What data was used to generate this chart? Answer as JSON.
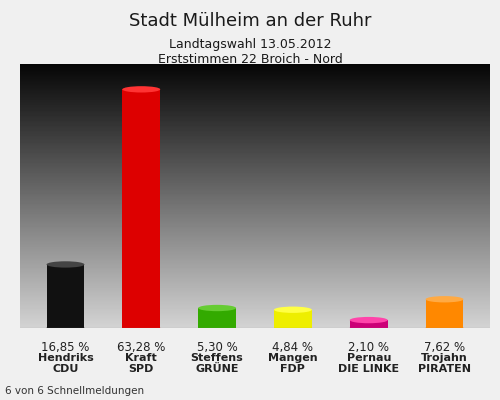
{
  "title": "Stadt Mülheim an der Ruhr",
  "subtitle1": "Landtagswahl 13.05.2012",
  "subtitle2": "Erststimmen 22 Broich - Nord",
  "footer": "6 von 6 Schnellmeldungen",
  "names": [
    "Hendriks",
    "Kraft",
    "Steffens",
    "Mangen",
    "Pernau",
    "Trojahn"
  ],
  "parties": [
    "CDU",
    "SPD",
    "GRÜNE",
    "FDP",
    "DIE LINKE",
    "PIRATEN"
  ],
  "values": [
    16.85,
    63.28,
    5.3,
    4.84,
    2.1,
    7.62
  ],
  "labels": [
    "16,85 %",
    "63,28 %",
    "5,30 %",
    "4,84 %",
    "2,10 %",
    "7,62 %"
  ],
  "bar_colors": [
    "#111111",
    "#DD0000",
    "#33AA00",
    "#EEEE00",
    "#CC0077",
    "#FF8800"
  ],
  "bar_colors_light": [
    "#444444",
    "#FF3333",
    "#66CC33",
    "#FFFF44",
    "#FF44AA",
    "#FFAA44"
  ],
  "ylim": [
    0,
    70
  ],
  "bar_width": 0.5
}
